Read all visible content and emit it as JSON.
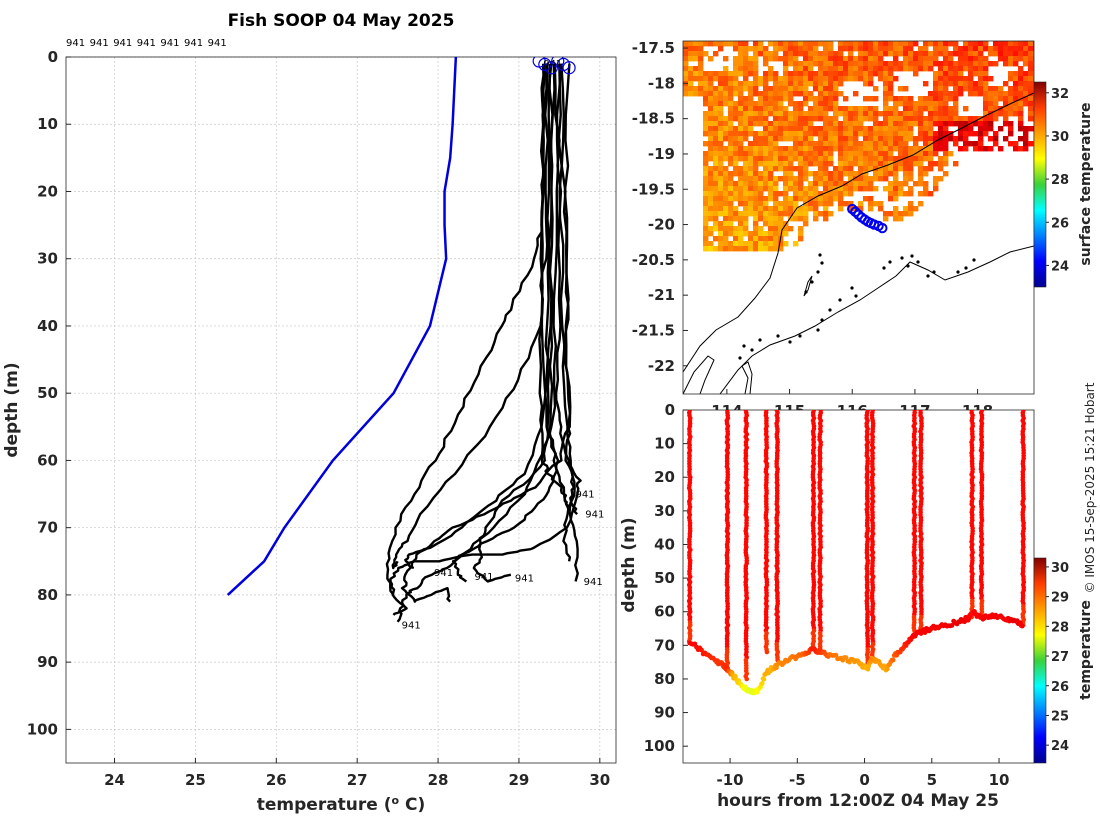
{
  "credit": "© IMOS 15-Sep-2025 15:21 Hobart",
  "chart_data": [
    {
      "id": "profile",
      "type": "line",
      "title": "Fish SOOP 04 May 2025",
      "xlabel": "temperature (",
      "xlabel_sup": "o",
      "xlabel_end": " C)",
      "ylabel": "depth (m)",
      "xlim": [
        23.4,
        30.2
      ],
      "ylim": [
        105,
        0
      ],
      "xticks": [
        24,
        25,
        26,
        27,
        28,
        29,
        30
      ],
      "yticks": [
        0,
        10,
        20,
        30,
        40,
        50,
        60,
        70,
        80,
        90,
        100
      ],
      "top_labels": [
        "941",
        "941",
        "941",
        "941",
        "941",
        "941",
        "941"
      ],
      "climatology": {
        "name": "climatology",
        "color": "#0000dd",
        "x": [
          28.22,
          28.2,
          28.18,
          28.15,
          28.08,
          28.08,
          28.1,
          27.9,
          27.45,
          26.7,
          26.1,
          25.85,
          25.4
        ],
        "y": [
          0,
          5,
          10,
          15,
          20,
          25,
          30,
          40,
          50,
          60,
          70,
          75,
          80
        ]
      },
      "profiles": [
        {
          "name": "cast-1",
          "x": [
            29.3,
            29.3,
            29.28,
            29.27,
            29.3,
            29.36,
            29.52,
            29.58,
            29.62
          ],
          "y": [
            1,
            10,
            30,
            50,
            60,
            62,
            64,
            66,
            67
          ]
        },
        {
          "name": "cast-2",
          "x": [
            29.45,
            29.5,
            29.5,
            29.48,
            29.5,
            29.6,
            29.75,
            29.7,
            29.65,
            29.72,
            29.7
          ],
          "y": [
            1,
            20,
            40,
            50,
            55,
            60,
            63,
            65,
            68,
            72,
            78
          ]
        },
        {
          "name": "cast-3",
          "x": [
            29.55,
            29.55,
            29.6,
            29.58,
            29.62,
            29.6,
            29.68,
            29.65,
            29.72
          ],
          "y": [
            1,
            20,
            35,
            45,
            55,
            60,
            64,
            66,
            68
          ]
        },
        {
          "name": "cast-4",
          "x": [
            29.4,
            29.42,
            29.4,
            29.38,
            29.45,
            29.55,
            29.6,
            29.55,
            29.62
          ],
          "y": [
            1,
            20,
            40,
            55,
            60,
            64,
            68,
            72,
            75
          ]
        },
        {
          "name": "cast-5",
          "x": [
            29.38,
            29.35,
            29.35,
            29.36,
            29.3,
            29.05,
            28.7,
            28.3,
            28.2,
            28.25,
            28.35
          ],
          "y": [
            1,
            20,
            40,
            55,
            60,
            65,
            70,
            74,
            75,
            77,
            78
          ]
        },
        {
          "name": "cast-6",
          "x": [
            29.5,
            29.48,
            29.45,
            29.42,
            29.2,
            28.8,
            28.6,
            28.5,
            28.55,
            28.45,
            28.6,
            28.9
          ],
          "y": [
            1,
            20,
            40,
            55,
            62,
            66,
            70,
            72,
            74,
            76,
            78,
            77
          ]
        },
        {
          "name": "cast-7",
          "x": [
            29.42,
            29.4,
            29.38,
            29.3,
            29.05,
            28.7,
            28.3,
            27.9,
            27.65,
            27.6,
            27.7
          ],
          "y": [
            1,
            20,
            40,
            55,
            62,
            66,
            70,
            73,
            74,
            75,
            76
          ]
        },
        {
          "name": "cast-8",
          "x": [
            29.35,
            29.35,
            29.32,
            29.25,
            29.0,
            28.65,
            28.2,
            27.8,
            27.6,
            27.5,
            27.45,
            27.5
          ],
          "y": [
            1,
            20,
            30,
            40,
            48,
            55,
            62,
            68,
            72,
            74,
            76,
            75
          ]
        },
        {
          "name": "cast-9",
          "x": [
            29.3,
            29.3,
            29.28,
            29.2,
            28.95,
            28.8,
            28.55,
            28.3,
            28.05,
            27.8,
            27.55,
            27.4,
            27.38,
            27.45
          ],
          "y": [
            1,
            15,
            25,
            30,
            36,
            40,
            46,
            52,
            58,
            63,
            68,
            73,
            77,
            80
          ]
        },
        {
          "name": "cast-10",
          "x": [
            29.6,
            29.58,
            29.6,
            29.62,
            29.5,
            29.2,
            28.9,
            28.55,
            28.2,
            27.95,
            27.75,
            27.6,
            27.58,
            27.7,
            27.9,
            28.1,
            28.15
          ],
          "y": [
            1,
            20,
            40,
            55,
            60,
            64,
            66,
            68,
            70,
            72,
            74,
            77,
            79,
            81,
            80,
            79,
            81
          ]
        },
        {
          "name": "cast-11",
          "x": [
            29.32,
            29.3,
            29.3,
            29.35,
            29.5,
            29.4,
            29.2,
            28.95,
            28.6,
            28.3,
            28.1,
            27.9,
            27.72,
            27.6,
            27.55,
            27.5
          ],
          "y": [
            1,
            20,
            40,
            55,
            60,
            64,
            67,
            70,
            72,
            74,
            76,
            77,
            79,
            80,
            82,
            84
          ]
        },
        {
          "name": "cast-12",
          "x": [
            29.5,
            29.52,
            29.55,
            29.58,
            29.65,
            29.7,
            29.6,
            29.2,
            28.8,
            28.4,
            28.0,
            27.7,
            27.5,
            27.42,
            27.45,
            27.6,
            27.45
          ],
          "y": [
            1,
            20,
            40,
            55,
            60,
            64,
            70,
            73,
            74,
            74,
            75,
            75,
            76,
            78,
            80,
            82,
            83
          ]
        }
      ],
      "profile_labels": [
        {
          "text": "941",
          "x": 29.7,
          "y": 65.5
        },
        {
          "text": "941",
          "x": 29.82,
          "y": 68.5
        },
        {
          "text": "941",
          "x": 29.8,
          "y": 78.5
        },
        {
          "text": "941",
          "x": 28.95,
          "y": 78
        },
        {
          "text": "941",
          "x": 28.45,
          "y": 77.8
        },
        {
          "text": "941",
          "x": 27.95,
          "y": 77.2
        },
        {
          "text": "941",
          "x": 27.55,
          "y": 85
        }
      ],
      "surface_markers_x": [
        29.25,
        29.32,
        29.4,
        29.48,
        29.55,
        29.62
      ],
      "surface_marker_label": "941"
    },
    {
      "id": "map",
      "type": "heatmap",
      "colorbar_label": "surface temperature",
      "yticks": [
        "-17.5",
        "-18",
        "-18.5",
        "-19",
        "-19.5",
        "-20",
        "-20.5",
        "-21",
        "-21.5",
        "-22"
      ],
      "xticks": [
        "114",
        "115",
        "116",
        "117",
        "118"
      ],
      "xlim": [
        113.3,
        118.9
      ],
      "ylim": [
        -22.4,
        -17.4
      ],
      "colorbar_ticks": [
        32,
        30,
        28,
        26,
        24
      ],
      "colorbar_range": [
        23,
        32.5
      ],
      "track_lon": [
        116.0,
        116.05,
        116.1,
        116.15,
        116.2,
        116.25,
        116.3,
        116.35,
        116.42,
        116.48
      ],
      "track_lat": [
        -19.78,
        -19.82,
        -19.86,
        -19.9,
        -19.93,
        -19.96,
        -19.98,
        -20.0,
        -20.02,
        -20.05
      ]
    },
    {
      "id": "section",
      "type": "scatter",
      "xlabel": "hours from 12:00Z 04 May 25",
      "ylabel": "depth (m)",
      "colorbar_label": "temperature",
      "xlim": [
        -13.5,
        12.6
      ],
      "ylim": [
        105,
        0
      ],
      "xticks": [
        "-10",
        "-5",
        "0",
        "5",
        "10"
      ],
      "yticks": [
        "0",
        "10",
        "20",
        "30",
        "40",
        "50",
        "60",
        "70",
        "80",
        "90",
        "100"
      ],
      "colorbar_ticks": [
        30,
        29,
        28,
        27,
        26,
        25,
        24
      ],
      "colorbar_range": [
        23.4,
        30.3
      ],
      "casts": [
        {
          "x": -13.0,
          "bottom": 69,
          "surfaceT": 29.4
        },
        {
          "x": -10.2,
          "bottom": 77,
          "surfaceT": 29.4
        },
        {
          "x": -8.8,
          "bottom": 80,
          "surfaceT": 29.4
        },
        {
          "x": -7.3,
          "bottom": 72,
          "surfaceT": 29.4
        },
        {
          "x": -6.5,
          "bottom": 75,
          "surfaceT": 29.4
        },
        {
          "x": -3.8,
          "bottom": 71,
          "surfaceT": 29.4
        },
        {
          "x": -3.3,
          "bottom": 72,
          "surfaceT": 29.4
        },
        {
          "x": 0.2,
          "bottom": 77,
          "surfaceT": 29.4
        },
        {
          "x": 0.6,
          "bottom": 75,
          "surfaceT": 29.4
        },
        {
          "x": 3.7,
          "bottom": 67,
          "surfaceT": 29.4
        },
        {
          "x": 4.2,
          "bottom": 67,
          "surfaceT": 29.4
        },
        {
          "x": 8.0,
          "bottom": 62,
          "surfaceT": 29.4
        },
        {
          "x": 8.7,
          "bottom": 62,
          "surfaceT": 29.4
        },
        {
          "x": 11.8,
          "bottom": 64,
          "surfaceT": 29.4
        }
      ],
      "bottom_path": {
        "x": [
          -13.0,
          -12.0,
          -11.0,
          -10.5,
          -10.2,
          -9.8,
          -9.3,
          -8.8,
          -8.3,
          -7.8,
          -7.3,
          -6.9,
          -6.5,
          -5.5,
          -4.5,
          -3.8,
          -3.3,
          -2.5,
          -1.5,
          -0.5,
          0.2,
          0.6,
          1.0,
          1.6,
          2.3,
          3.0,
          3.7,
          4.2,
          5.0,
          6.0,
          7.0,
          7.7,
          8.0,
          8.7,
          9.5,
          10.5,
          11.2,
          11.8
        ],
        "y": [
          69,
          72,
          75,
          76,
          77,
          79,
          81,
          83,
          84,
          83,
          78,
          77,
          76,
          74,
          73,
          71,
          72,
          73,
          74,
          75,
          77,
          74,
          75,
          77,
          73,
          70,
          67,
          66,
          65,
          64,
          63,
          62,
          60,
          62,
          61,
          62,
          63,
          64
        ],
        "t": [
          29.5,
          29.3,
          29.1,
          29.1,
          29.2,
          28.3,
          28.0,
          27.6,
          27.5,
          27.8,
          28.3,
          28.2,
          28.5,
          28.6,
          28.8,
          29.3,
          29.1,
          28.7,
          28.5,
          28.4,
          28.2,
          28.5,
          28.4,
          28.3,
          28.9,
          29.2,
          29.5,
          29.5,
          29.5,
          29.5,
          29.6,
          29.5,
          29.4,
          29.5,
          29.5,
          29.5,
          29.6,
          29.5
        ]
      }
    }
  ]
}
